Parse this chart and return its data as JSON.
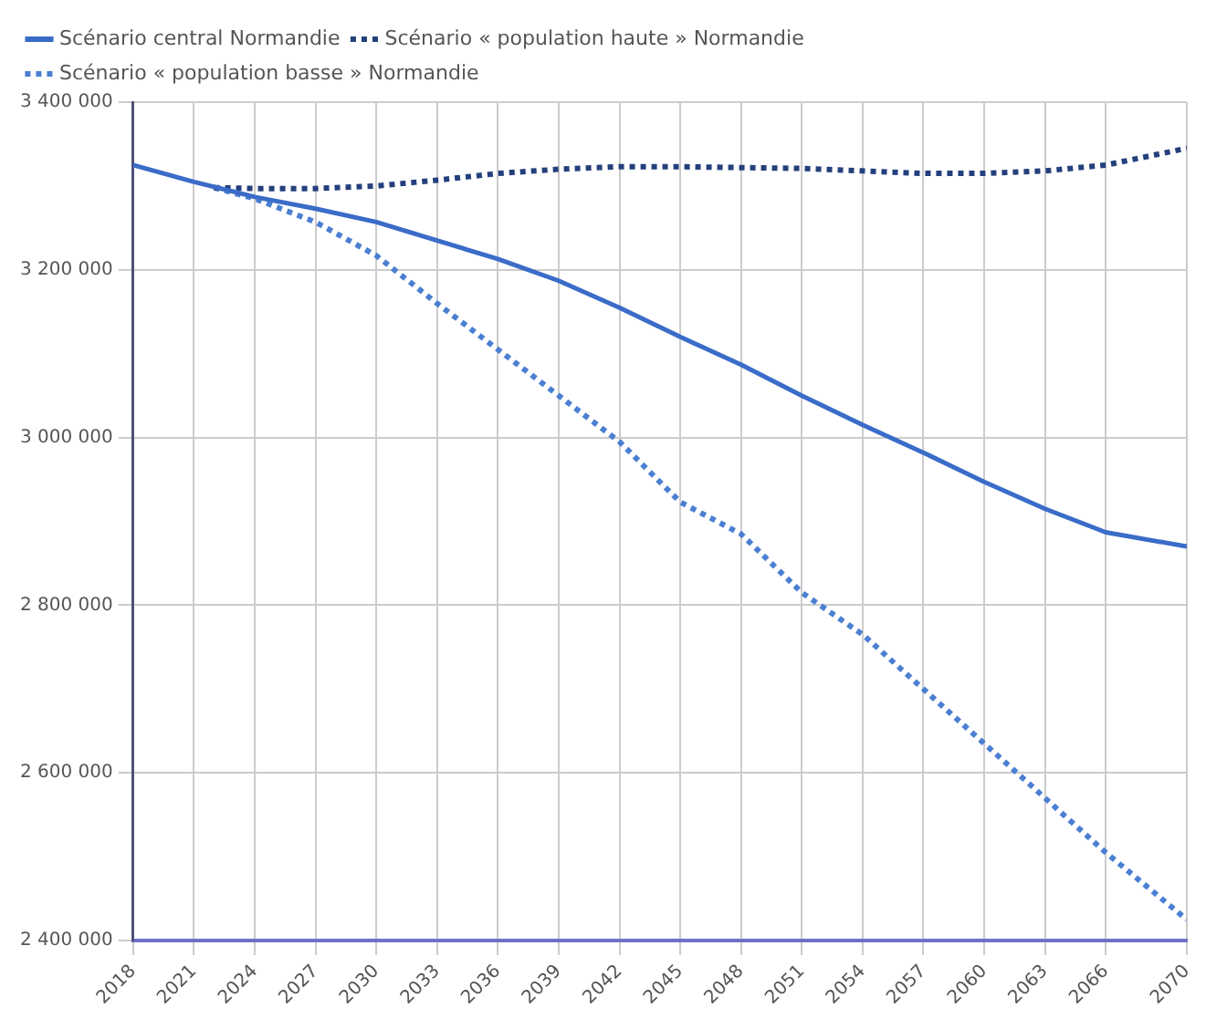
{
  "chart_data": {
    "type": "line",
    "x": [
      2018,
      2021,
      2024,
      2027,
      2030,
      2033,
      2036,
      2039,
      2042,
      2045,
      2048,
      2051,
      2054,
      2057,
      2060,
      2063,
      2066,
      2070
    ],
    "series": [
      {
        "name": "Scénario central Normandie",
        "color": "#3a6cc8",
        "line_style": "solid",
        "values": [
          3325000,
          3305000,
          3287000,
          3273000,
          3257000,
          3235000,
          3213000,
          3187000,
          3155000,
          3120000,
          3087000,
          3050000,
          3015000,
          2982000,
          2947000,
          2915000,
          2887000,
          2870000
        ]
      },
      {
        "name": "Scénario « population haute » Normandie",
        "color": "#24407c",
        "line_style": "dotted",
        "x": [
          2022,
          2024,
          2027,
          2030,
          2033,
          2036,
          2039,
          2042,
          2045,
          2048,
          2051,
          2054,
          2057,
          2060,
          2063,
          2066,
          2070
        ],
        "values": [
          3298000,
          3297000,
          3297000,
          3300000,
          3307000,
          3315000,
          3320000,
          3323000,
          3323000,
          3322000,
          3321000,
          3318000,
          3315000,
          3315000,
          3318000,
          3325000,
          3345000
        ]
      },
      {
        "name": "Scénario « population basse » Normandie",
        "color": "#4a7fd2",
        "line_style": "dotted",
        "x": [
          2022,
          2024,
          2027,
          2030,
          2033,
          2036,
          2039,
          2042,
          2045,
          2048,
          2051,
          2054,
          2057,
          2060,
          2063,
          2066,
          2070
        ],
        "values": [
          3298000,
          3285000,
          3257000,
          3217000,
          3160000,
          3105000,
          3050000,
          2995000,
          2923000,
          2885000,
          2815000,
          2765000,
          2700000,
          2635000,
          2570000,
          2505000,
          2425000
        ]
      }
    ],
    "xlim": [
      2018,
      2070
    ],
    "xticks": [
      2018,
      2021,
      2024,
      2027,
      2030,
      2033,
      2036,
      2039,
      2042,
      2045,
      2048,
      2051,
      2054,
      2057,
      2060,
      2063,
      2066,
      2070
    ],
    "ylim": [
      2400000,
      3400000
    ],
    "yticks": [
      {
        "value": 2400000,
        "label": "2 400 000"
      },
      {
        "value": 2600000,
        "label": "2 600 000"
      },
      {
        "value": 2800000,
        "label": "2 800 000"
      },
      {
        "value": 3000000,
        "label": "3 000 000"
      },
      {
        "value": 3200000,
        "label": "3 200 000"
      },
      {
        "value": 3400000,
        "label": "3 400 000"
      }
    ],
    "grid": true,
    "legend": "top left",
    "marker": "none"
  }
}
